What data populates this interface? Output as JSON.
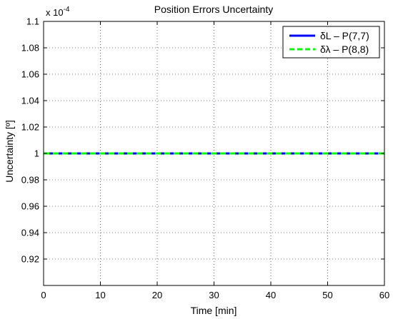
{
  "chart_data": {
    "type": "line",
    "title": "Position Errors Uncertainty",
    "xlabel": "Time [min]",
    "ylabel": "Uncertainty [º]",
    "y_multiplier_label": "x 10",
    "y_multiplier_exponent": "-4",
    "xlim": [
      0,
      60
    ],
    "ylim": [
      0.9,
      1.1
    ],
    "x_ticks": [
      0,
      10,
      20,
      30,
      40,
      50,
      60
    ],
    "x_tick_labels": [
      "0",
      "10",
      "20",
      "30",
      "40",
      "50",
      "60"
    ],
    "y_ticks": [
      0.92,
      0.94,
      0.96,
      0.98,
      1.0,
      1.02,
      1.04,
      1.06,
      1.08,
      1.1
    ],
    "y_tick_labels": [
      "0.92",
      "0.94",
      "0.96",
      "0.98",
      "1",
      "1.02",
      "1.04",
      "1.06",
      "1.08",
      "1.1"
    ],
    "grid": true,
    "legend_position": "top-right",
    "series": [
      {
        "name": "δL – P(7,7)",
        "x": [
          0,
          60
        ],
        "y": [
          1.0,
          1.0
        ],
        "color": "#0000ff",
        "style": "solid"
      },
      {
        "name": "δλ – P(8,8)",
        "x": [
          0,
          60
        ],
        "y": [
          1.0,
          1.0
        ],
        "color": "#00ff00",
        "style": "dashed"
      }
    ]
  }
}
